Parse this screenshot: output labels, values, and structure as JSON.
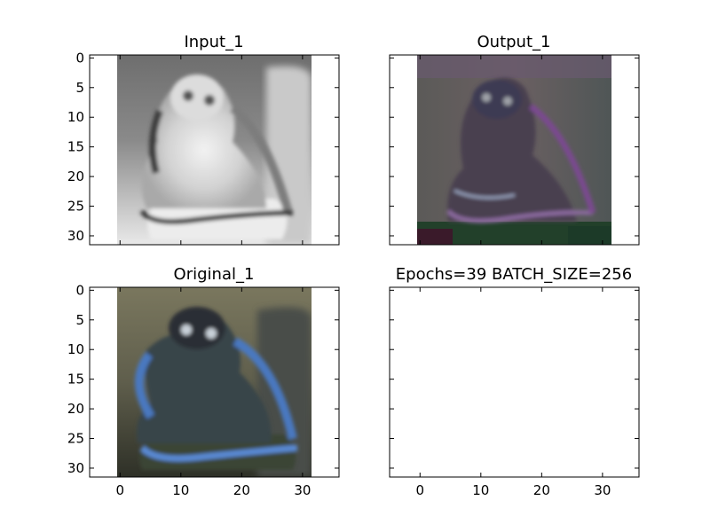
{
  "figure": {
    "subplots": [
      {
        "title": "Input_1",
        "kind": "image",
        "image_style": "grayscale"
      },
      {
        "title": "Output_1",
        "kind": "image",
        "image_style": "color-artifact"
      },
      {
        "title": "Original_1",
        "kind": "image",
        "image_style": "color"
      },
      {
        "title": "Epochs=39 BATCH_SIZE=256",
        "kind": "empty"
      }
    ]
  },
  "chart_data": {
    "type": "heatmap",
    "layout": "2x2 grid of image subplots",
    "image_size": [
      32,
      32
    ],
    "xlim": [
      -5,
      36
    ],
    "ylim": [
      31.5,
      -0.5
    ],
    "xticks": [
      0,
      10,
      20,
      30
    ],
    "yticks": [
      0,
      5,
      10,
      15,
      20,
      25,
      30
    ],
    "x_tick_labels_visible_on": [
      "Original_1",
      "Epochs=39 BATCH_SIZE=256"
    ],
    "y_tick_labels_visible_on": [
      "Input_1",
      "Original_1"
    ],
    "grid": false,
    "colors": {
      "image_gray_bg": "#a9a9a9",
      "original_bg": "#6f6a50",
      "output_bg": "#5e5a58",
      "accent_blue": "#4a78c0"
    }
  }
}
